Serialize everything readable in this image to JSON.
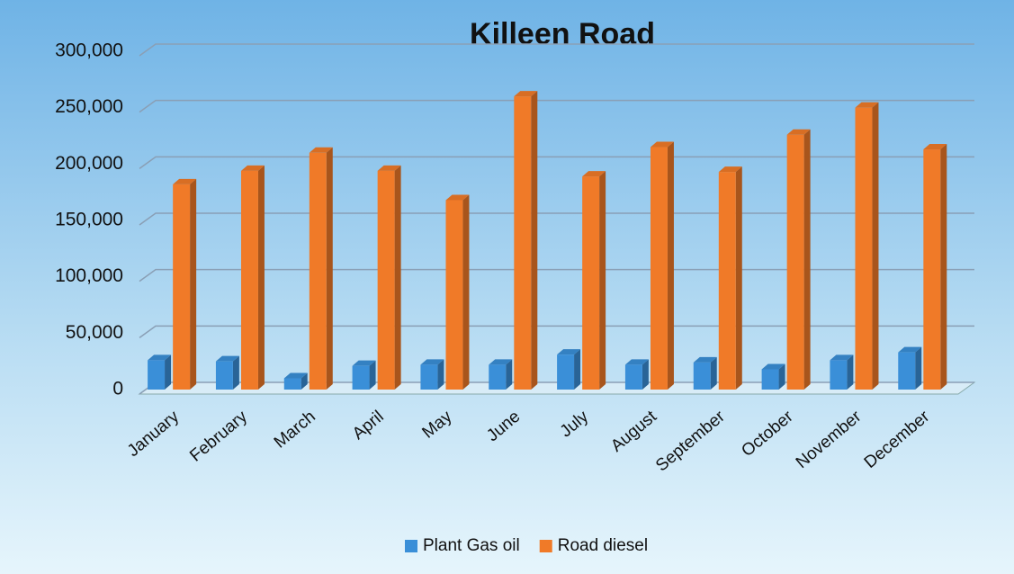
{
  "chart_data": {
    "type": "bar",
    "title": "Killeen Road",
    "categories": [
      "January",
      "February",
      "March",
      "April",
      "May",
      "June",
      "July",
      "August",
      "September",
      "October",
      "November",
      "December"
    ],
    "series": [
      {
        "name": "Plant Gas oil",
        "color": "#3a8fd8",
        "values": [
          26000,
          25000,
          10000,
          21000,
          22000,
          22000,
          31000,
          22000,
          24000,
          18000,
          26000,
          33000
        ]
      },
      {
        "name": "Road diesel",
        "color": "#f07a28",
        "values": [
          182000,
          194000,
          210000,
          194000,
          168000,
          260000,
          189000,
          215000,
          193000,
          226000,
          250000,
          213000
        ]
      }
    ],
    "ylim": [
      0,
      300000
    ],
    "yticks": [
      0,
      {
        "value": 50000,
        "label": "50,000"
      },
      {
        "value": 100000,
        "label": "100,000"
      },
      {
        "value": 150000,
        "label": "150,000"
      },
      {
        "value": 200000,
        "label": "200,000"
      },
      {
        "value": 250000,
        "label": "250,000"
      },
      {
        "value": 300000,
        "label": "300,000"
      }
    ],
    "grid": true,
    "legend": "bottom"
  }
}
